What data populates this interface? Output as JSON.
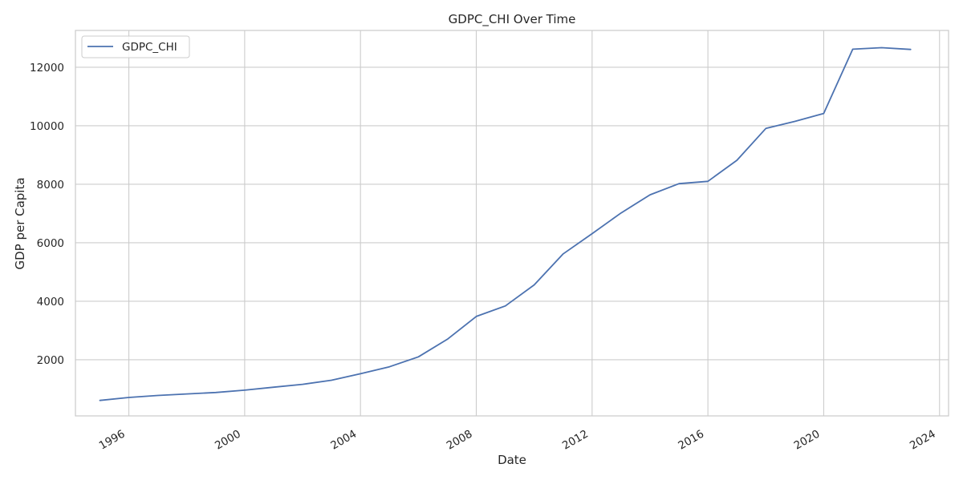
{
  "chart_data": {
    "type": "line",
    "title": "GDPC_CHI Over Time",
    "xlabel": "Date",
    "ylabel": "GDP per Capita",
    "x": [
      "1995",
      "1996",
      "1997",
      "1998",
      "1999",
      "2000",
      "2001",
      "2002",
      "2003",
      "2004",
      "2005",
      "2006",
      "2007",
      "2008",
      "2009",
      "2010",
      "2011",
      "2012",
      "2013",
      "2014",
      "2015",
      "2016",
      "2017",
      "2018",
      "2019",
      "2020",
      "2021",
      "2022",
      "2023"
    ],
    "series": [
      {
        "name": "GDPC_CHI",
        "color": "#4c72b0",
        "values": [
          610,
          710,
          780,
          830,
          880,
          960,
          1060,
          1160,
          1300,
          1520,
          1760,
          2100,
          2700,
          3480,
          3840,
          4560,
          5620,
          6310,
          7020,
          7640,
          8020,
          8100,
          8820,
          9910,
          10150,
          10420,
          12620,
          12670,
          12610
        ]
      }
    ],
    "xlim": [
      "1994-02-26",
      "2024-04-24"
    ],
    "ylim": [
      80,
      13260
    ],
    "x_ticks": [
      "1996",
      "2000",
      "2004",
      "2008",
      "2012",
      "2016",
      "2020",
      "2024"
    ],
    "y_ticks": [
      2000,
      4000,
      6000,
      8000,
      10000,
      12000
    ],
    "grid": true,
    "legend_position": "top-left"
  }
}
